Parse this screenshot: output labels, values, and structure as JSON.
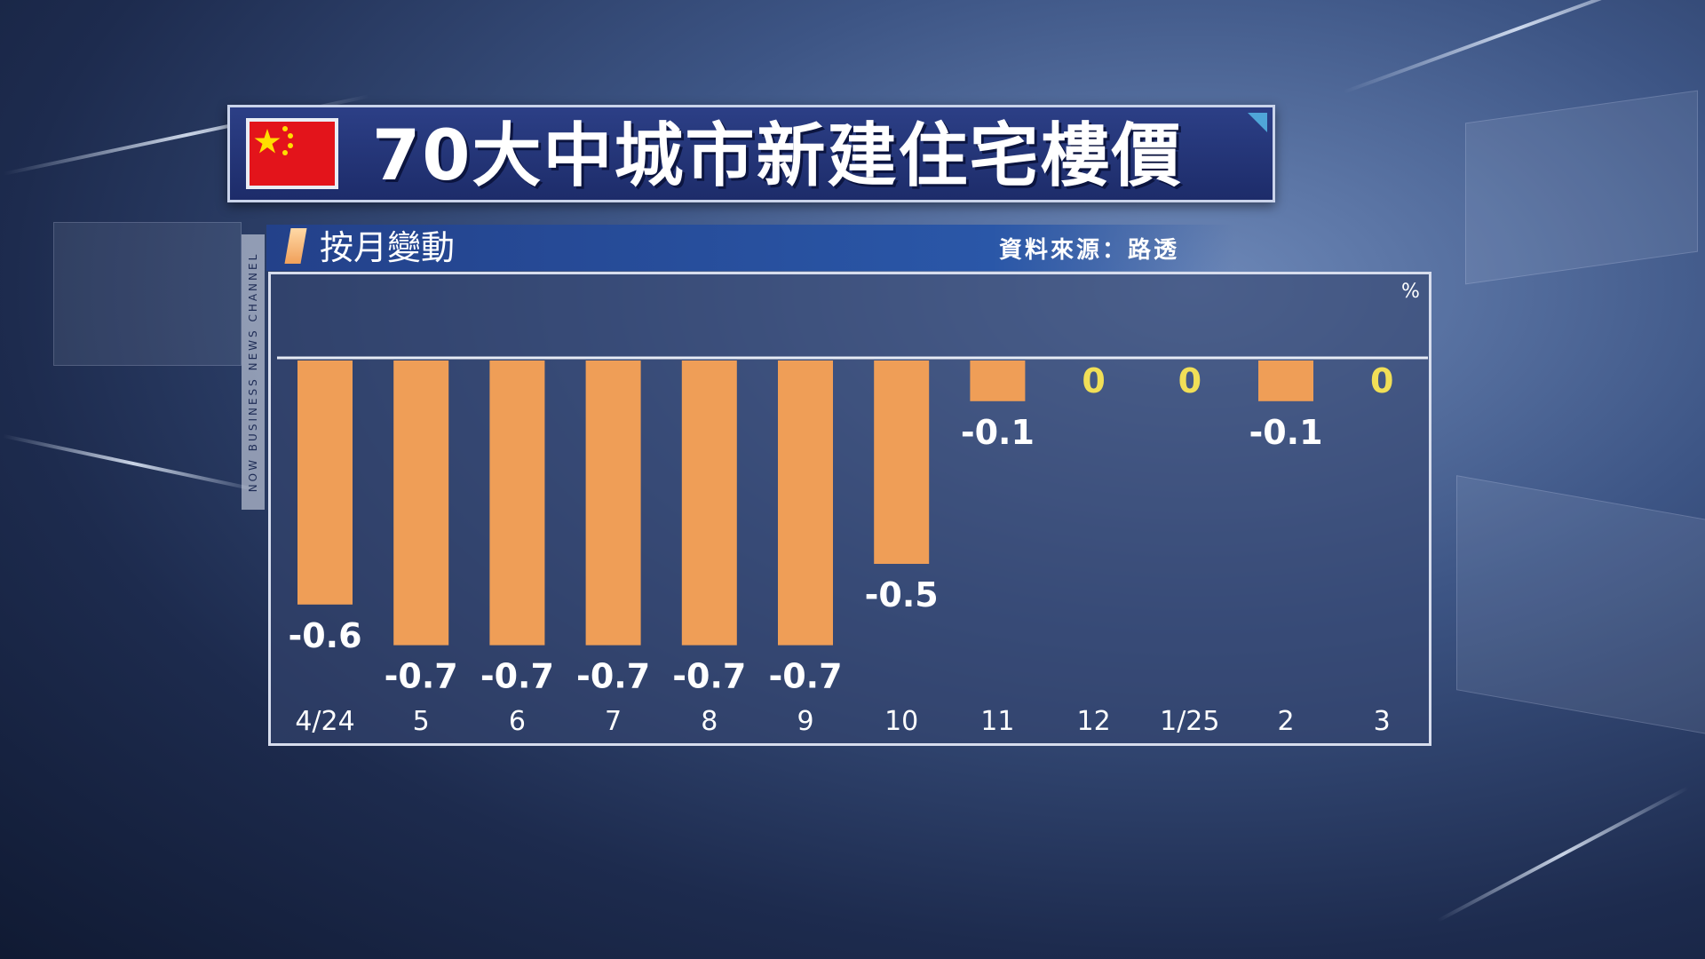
{
  "header": {
    "title": "70大中城市新建住宅樓價",
    "subtitle": "按月變動",
    "source": "資料來源：路透",
    "side_label": "NOW BUSINESS NEWS CHANNEL",
    "flag_icon": "china-flag-icon"
  },
  "chart_data": {
    "type": "bar",
    "title": "70大中城市新建住宅樓價",
    "subtitle": "按月變動",
    "unit": "%",
    "categories": [
      "4/24",
      "5",
      "6",
      "7",
      "8",
      "9",
      "10",
      "11",
      "12",
      "1/25",
      "2",
      "3"
    ],
    "values": [
      -0.6,
      -0.7,
      -0.7,
      -0.7,
      -0.7,
      -0.7,
      -0.5,
      -0.1,
      0,
      0,
      -0.1,
      0
    ],
    "value_labels": [
      "-0.6",
      "-0.7",
      "-0.7",
      "-0.7",
      "-0.7",
      "-0.7",
      "-0.5",
      "-0.1",
      "0",
      "0",
      "-0.1",
      "0"
    ],
    "ylim": [
      -0.7,
      0
    ],
    "grid": false,
    "legend": "none",
    "colors": {
      "bar": "#ef9e57",
      "zero_label": "#f1df57",
      "label": "#ffffff"
    }
  }
}
